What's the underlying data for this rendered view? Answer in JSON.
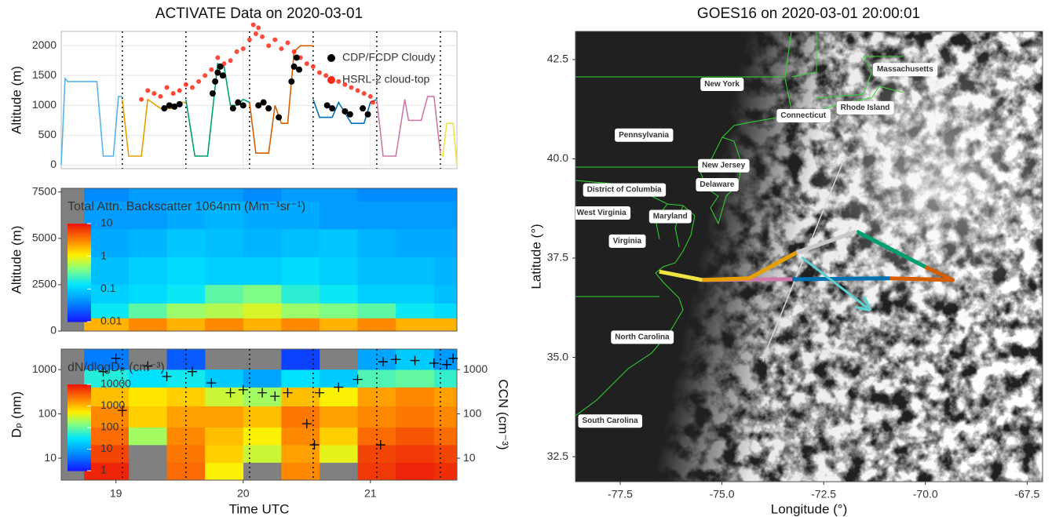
{
  "chart_data": [
    {
      "type": "line",
      "title": "ACTIVATE Data on 2020-03-01",
      "y_label": "Altitude (m)",
      "xlim": [
        18.57,
        21.68
      ],
      "xticks": [
        19,
        20,
        21
      ],
      "ylim": [
        -60,
        2240
      ],
      "yticks": [
        0,
        500,
        1000,
        1500,
        2000
      ],
      "grid": true,
      "legend": "upper right",
      "vlines": [
        19.05,
        19.55,
        20.05,
        20.55,
        21.05,
        21.55
      ],
      "legs": [
        {
          "color": "#56b4e9",
          "x": [
            18.57,
            18.6,
            18.62,
            18.85,
            18.9,
            18.98,
            19.02,
            19.05
          ],
          "values": [
            0,
            1450,
            1400,
            1400,
            150,
            150,
            1150,
            1150
          ]
        },
        {
          "color": "#e69f00",
          "x": [
            19.05,
            19.1,
            19.2,
            19.25,
            19.35,
            19.45,
            19.5,
            19.55
          ],
          "values": [
            1100,
            150,
            150,
            1100,
            950,
            950,
            1050,
            1050
          ]
        },
        {
          "color": "#009e73",
          "x": [
            19.55,
            19.62,
            19.72,
            19.8,
            19.85,
            19.9,
            19.95,
            20.0,
            20.05
          ],
          "values": [
            1100,
            150,
            150,
            1700,
            1650,
            1000,
            1000,
            1100,
            1050
          ]
        },
        {
          "color": "#d55e00",
          "x": [
            20.05,
            20.1,
            20.2,
            20.25,
            20.3,
            20.35,
            20.4,
            20.45,
            20.55
          ],
          "values": [
            1050,
            200,
            200,
            1000,
            700,
            700,
            1900,
            2000,
            2000
          ]
        },
        {
          "color": "#0072b2",
          "x": [
            20.55,
            20.6,
            20.7,
            20.75,
            20.85,
            20.95,
            21.0,
            21.05
          ],
          "values": [
            1100,
            800,
            800,
            1050,
            700,
            700,
            1050,
            1100
          ]
        },
        {
          "color": "#cc79a7",
          "x": [
            21.05,
            21.1,
            21.2,
            21.27,
            21.3,
            21.4,
            21.45,
            21.5,
            21.55
          ],
          "values": [
            1100,
            150,
            150,
            1100,
            750,
            750,
            1150,
            1150,
            200
          ]
        },
        {
          "color": "#f0e442",
          "x": [
            21.55,
            21.57,
            21.6,
            21.65,
            21.68
          ],
          "values": [
            200,
            150,
            700,
            700,
            0
          ]
        }
      ],
      "series": [
        {
          "name": "CDP/FCDP Cloudy",
          "color": "#000000",
          "x": [
            19.38,
            19.42,
            19.46,
            19.5,
            19.76,
            19.78,
            19.8,
            19.82,
            19.84,
            19.92,
            19.96,
            20.0,
            20.12,
            20.16,
            20.2,
            20.28,
            20.38,
            20.4,
            20.42,
            20.44,
            20.66,
            20.7,
            20.8,
            20.84,
            20.94,
            20.98
          ],
          "values": [
            950,
            1000,
            980,
            1020,
            1200,
            1400,
            1550,
            1650,
            1500,
            950,
            1050,
            1000,
            1000,
            1050,
            950,
            800,
            1400,
            1650,
            1800,
            1600,
            1000,
            950,
            900,
            850,
            950,
            850
          ]
        },
        {
          "name": "HSRL-2 cloud-top",
          "color": "#ff2a1a",
          "x": [
            19.2,
            19.25,
            19.3,
            19.35,
            19.4,
            19.45,
            19.5,
            19.55,
            19.6,
            19.65,
            19.7,
            19.75,
            19.8,
            19.85,
            19.9,
            19.95,
            20.0,
            20.05,
            20.08,
            20.1,
            20.12,
            20.15,
            20.2,
            20.25,
            20.3,
            20.35,
            20.4,
            20.45,
            20.5,
            20.55,
            20.6,
            20.65,
            20.7,
            20.75,
            20.8,
            20.85,
            20.9,
            20.95,
            21.0,
            21.02
          ],
          "values": [
            1100,
            1250,
            1200,
            1150,
            1300,
            1200,
            1250,
            1350,
            1300,
            1400,
            1500,
            1600,
            1800,
            1700,
            1750,
            1900,
            1950,
            2100,
            2350,
            2200,
            2300,
            2150,
            2000,
            2100,
            1950,
            2050,
            1900,
            1800,
            1700,
            1650,
            1550,
            1500,
            1450,
            1400,
            1350,
            1300,
            1250,
            1200,
            1150,
            1050
          ]
        }
      ]
    },
    {
      "type": "heatmap",
      "label": "Total Attn. Backscatter 1064nm (Mm⁻¹sr⁻¹)",
      "y_label": "Altitude (m)",
      "xlim": [
        18.57,
        21.68
      ],
      "ylim": [
        0,
        7700
      ],
      "yticks": [
        0,
        2500,
        5000,
        7500
      ],
      "clim": [
        0.01,
        10
      ],
      "colorbar_ticks": [
        0.01,
        0.1,
        1,
        10
      ],
      "x_edges": [
        18.75,
        19.1,
        19.4,
        19.7,
        20.0,
        20.3,
        20.6,
        20.9,
        21.2,
        21.5,
        21.68
      ],
      "y_edges": [
        0,
        700,
        1500,
        2500,
        4000,
        5500,
        7000,
        7700
      ],
      "z": [
        [
          2,
          3,
          2,
          3,
          2,
          3,
          2,
          3,
          2,
          2
        ],
        [
          0.15,
          0.3,
          0.5,
          0.6,
          0.8,
          0.5,
          0.4,
          0.3,
          0.15,
          0.12
        ],
        [
          0.1,
          0.12,
          0.15,
          0.3,
          0.4,
          0.2,
          0.15,
          0.1,
          0.1,
          0.08
        ],
        [
          0.08,
          0.1,
          0.12,
          0.1,
          0.1,
          0.12,
          0.1,
          0.08,
          0.08,
          0.07
        ],
        [
          0.06,
          0.07,
          0.09,
          0.08,
          0.07,
          0.08,
          0.09,
          0.07,
          0.06,
          0.06
        ],
        [
          0.05,
          0.05,
          0.06,
          0.07,
          0.06,
          0.06,
          0.05,
          0.05,
          0.05,
          0.05
        ],
        [
          0.04,
          0.05,
          0.05,
          0.05,
          0.04,
          0.05,
          0.05,
          0.04,
          0.04,
          0.04
        ]
      ]
    },
    {
      "type": "heatmap",
      "label": "dN/dlogDₚ (cm⁻³)",
      "y_label": "Dₚ (nm)",
      "y2_label": "CCN (cm⁻³)",
      "x_label": "Time UTC",
      "xlim": [
        18.57,
        21.68
      ],
      "xticks": [
        19,
        20,
        21
      ],
      "log_y": true,
      "ylim": [
        3.2,
        2900
      ],
      "yticks": [
        10,
        100,
        1000
      ],
      "y2lim": [
        3.2,
        2900
      ],
      "y2ticks": [
        10,
        100,
        1000
      ],
      "vlines": [
        19.05,
        19.55,
        20.05,
        20.55,
        21.05,
        21.55
      ],
      "clim": [
        1,
        10000
      ],
      "colorbar_ticks": [
        1,
        10,
        100,
        1000,
        10000
      ],
      "x_edges": [
        18.75,
        19.1,
        19.4,
        19.7,
        20.0,
        20.3,
        20.6,
        20.9,
        21.2,
        21.5,
        21.68
      ],
      "y_edges": [
        3.2,
        8,
        20,
        50,
        150,
        400,
        1000,
        2900
      ],
      "z": [
        [
          8000,
          null,
          3000,
          500,
          null,
          2000,
          null,
          6000,
          8000,
          7000
        ],
        [
          5000,
          null,
          2500,
          800,
          300,
          1500,
          400,
          5000,
          6000,
          5000
        ],
        [
          3000,
          200,
          2000,
          1000,
          500,
          2000,
          800,
          3000,
          4000,
          3000
        ],
        [
          2000,
          800,
          1500,
          1500,
          1000,
          2500,
          1500,
          2000,
          2500,
          2000
        ],
        [
          1000,
          600,
          800,
          300,
          200,
          1000,
          500,
          1500,
          2000,
          1500
        ],
        [
          50,
          30,
          40,
          20,
          10,
          30,
          20,
          80,
          100,
          60
        ],
        [
          5,
          null,
          3,
          null,
          null,
          2,
          null,
          10,
          20,
          8
        ]
      ],
      "ccn": {
        "axis": "y2",
        "color": "#000000",
        "x": [
          18.7,
          18.9,
          19.0,
          19.05,
          19.25,
          19.4,
          19.6,
          19.75,
          19.9,
          20.0,
          20.15,
          20.25,
          20.35,
          20.5,
          20.56,
          20.6,
          20.75,
          20.9,
          21.08,
          21.1,
          21.2,
          21.35,
          21.5,
          21.6,
          21.65
        ],
        "values": [
          120,
          900,
          1800,
          120,
          1200,
          700,
          900,
          500,
          300,
          350,
          300,
          250,
          300,
          60,
          20,
          300,
          400,
          600,
          20,
          1500,
          1700,
          1600,
          1400,
          1300,
          1800
        ]
      }
    },
    {
      "type": "map",
      "title": "GOES16 on 2020-03-01 20:00:01",
      "x_label": "Longitude (°)",
      "y_label": "Latitude (°)",
      "xlim": [
        -78.6,
        -67.12
      ],
      "xticks": [
        -77.5,
        {
          "value": -75,
          "label": "-75.0"
        },
        -72.5,
        {
          "value": -70,
          "label": "-70.0"
        },
        -67.5
      ],
      "ylim": [
        31.87,
        43.21
      ],
      "yticks": [
        32.5,
        {
          "value": 35,
          "label": "35.0"
        },
        37.5,
        {
          "value": 40,
          "label": "40.0"
        },
        42.5
      ],
      "places": [
        {
          "label": "New York",
          "lon": -75.0,
          "lat": 41.88
        },
        {
          "label": "Massachusetts",
          "lon": -70.5,
          "lat": 42.25
        },
        {
          "label": "Connecticut",
          "lon": -73.0,
          "lat": 41.09
        },
        {
          "label": "Rhode Island",
          "lon": -71.48,
          "lat": 41.29
        },
        {
          "label": "Pennsylvania",
          "lon": -76.92,
          "lat": 40.6
        },
        {
          "label": "New Jersey",
          "lon": -74.96,
          "lat": 39.83
        },
        {
          "label": "Delaware",
          "lon": -75.12,
          "lat": 39.35
        },
        {
          "label": "District of Columbia",
          "lon": -77.4,
          "lat": 39.22
        },
        {
          "label": "West Virginia",
          "lon": -77.96,
          "lat": 38.64
        },
        {
          "label": "Maryland",
          "lon": -76.27,
          "lat": 38.55
        },
        {
          "label": "Virginia",
          "lon": -77.33,
          "lat": 37.93
        },
        {
          "label": "North Carolina",
          "lon": -76.96,
          "lat": 35.51
        },
        {
          "label": "South Carolina",
          "lon": -77.75,
          "lat": 33.4
        }
      ],
      "section": {
        "color": "#d9d9d9",
        "x": [
          -73.98,
          -71.98
        ],
        "values": [
          35.0,
          40.04
        ]
      },
      "legs": [
        {
          "color": "#f0e442",
          "x": [
            -76.54,
            -75.48
          ],
          "values": [
            37.16,
            36.95
          ]
        },
        {
          "color": "#cc79a7",
          "x": [
            -75.48,
            -73.27
          ],
          "values": [
            36.95,
            36.97
          ]
        },
        {
          "color": "#0072b2",
          "x": [
            -73.27,
            -70.87
          ],
          "values": [
            36.97,
            36.99
          ]
        },
        {
          "color": "#d55e00",
          "x": [
            -70.87,
            -69.33,
            -70.0
          ],
          "values": [
            36.99,
            36.95,
            37.28
          ]
        },
        {
          "color": "#009e73",
          "x": [
            -70.0,
            -71.69
          ],
          "values": [
            37.28,
            38.17
          ]
        },
        {
          "color": "#c8c8c8",
          "x": [
            -71.69,
            -73.17
          ],
          "values": [
            38.17,
            37.64
          ]
        },
        {
          "color": "#e69f00",
          "x": [
            -73.17,
            -74.33,
            -75.48
          ],
          "values": [
            37.64,
            36.99,
            36.95
          ]
        }
      ],
      "arrow": {
        "color": "#5fd0d0",
        "x": [
          -73.04,
          -71.44
        ],
        "values": [
          37.52,
          36.26
        ]
      }
    }
  ]
}
